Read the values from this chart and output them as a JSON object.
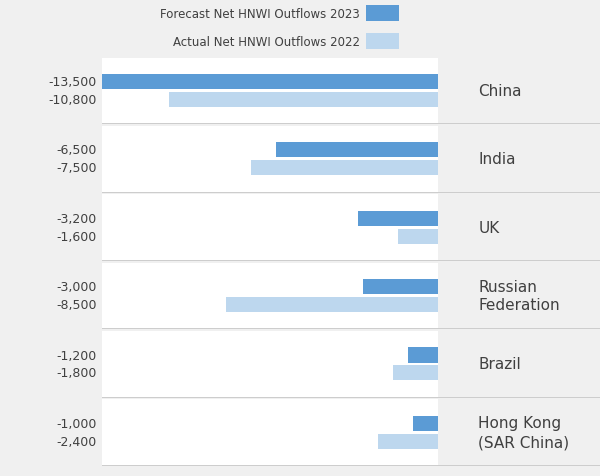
{
  "countries": [
    "China",
    "India",
    "UK",
    "Russian\nFederation",
    "Brazil",
    "Hong Kong\n(SAR China)"
  ],
  "forecast_2023": [
    13500,
    6500,
    3200,
    3000,
    1200,
    1000
  ],
  "actual_2022": [
    10800,
    7500,
    1600,
    8500,
    1800,
    2400
  ],
  "forecast_labels": [
    "-13,500",
    "-6,500",
    "-3,200",
    "-3,000",
    "-1,200",
    "-1,000"
  ],
  "actual_labels": [
    "-10,800",
    "-7,500",
    "-1,600",
    "-8,500",
    "-1,800",
    "-2,400"
  ],
  "color_2023": "#5b9bd5",
  "color_2022": "#bdd7ee",
  "background_color": "#f0f0f0",
  "bar_area_background": "#ffffff",
  "label_color": "#404040",
  "legend_label_2023": "Forecast Net HNWI Outflows 2023",
  "legend_label_2022": "Actual Net HNWI Outflows 2022",
  "max_val": 13500,
  "bar_height": 0.22,
  "font_size_labels": 9,
  "font_size_country": 11,
  "font_size_legend": 8.5,
  "separator_color": "#cccccc",
  "right_panel_color": "#e8e8e8"
}
